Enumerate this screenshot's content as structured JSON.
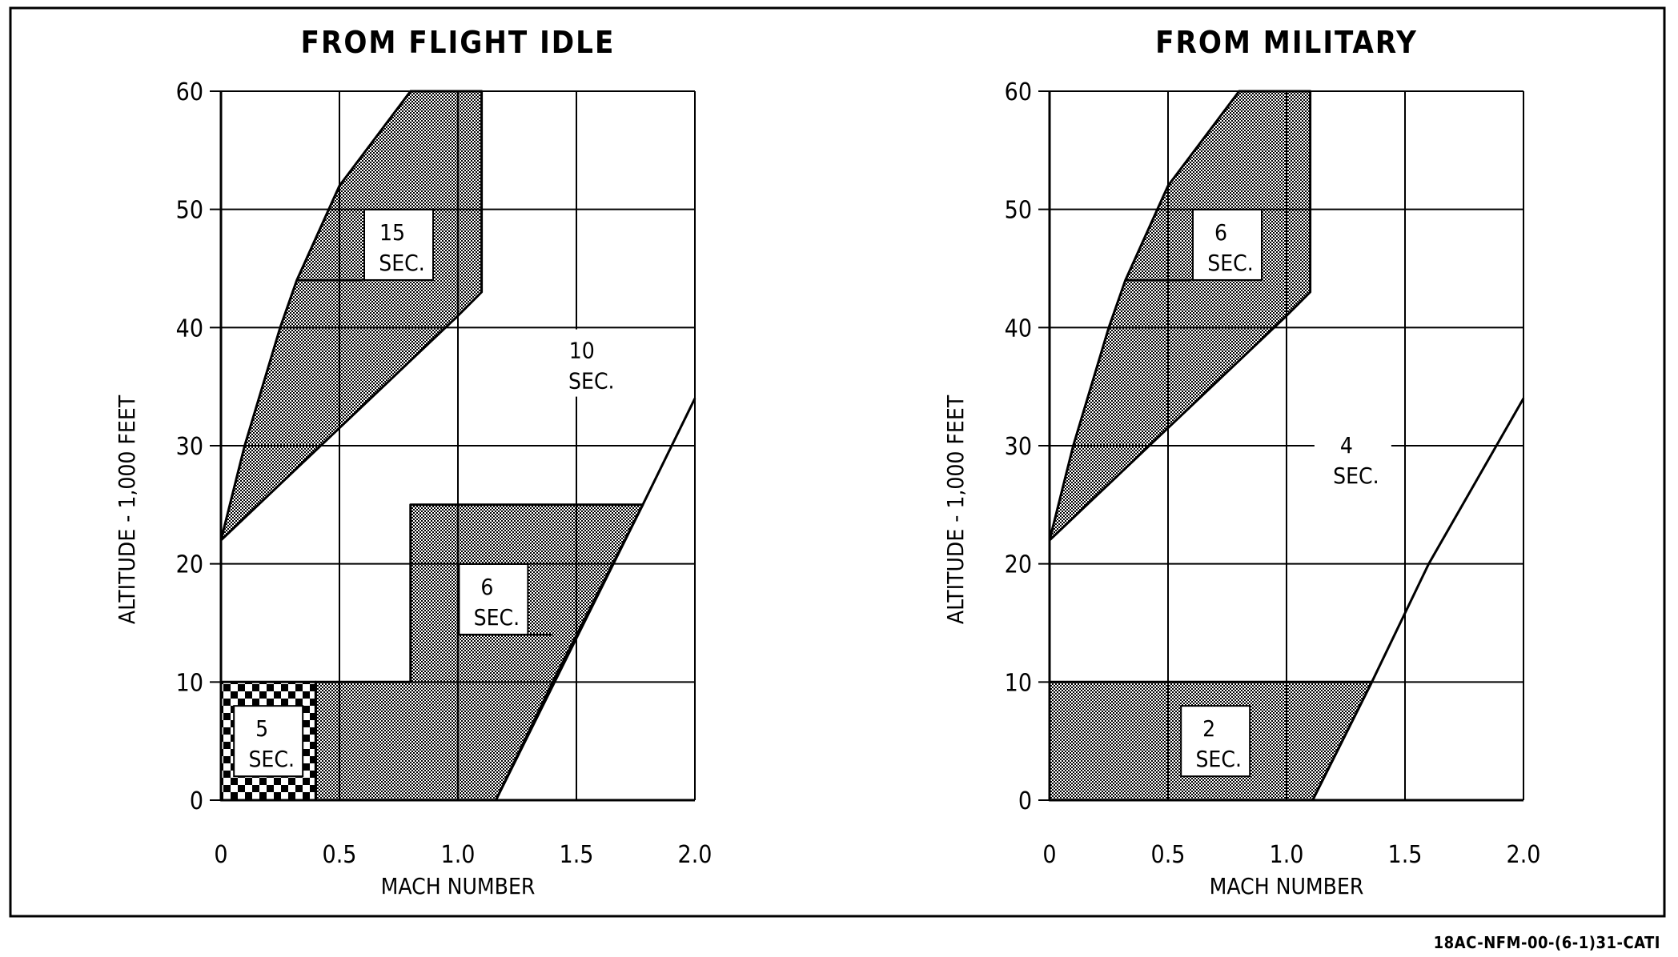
{
  "document_id": "18AC-NFM-00-(6-1)31-CATI",
  "colors": {
    "ink": "#000000",
    "background": "#ffffff",
    "dot_fill": "#9a9a9a"
  },
  "chart_data": [
    {
      "type": "area",
      "title": "FROM FLIGHT IDLE",
      "xlabel": "MACH NUMBER",
      "ylabel": "ALTITUDE - 1,000 FEET",
      "xlim": [
        0,
        2.0
      ],
      "ylim": [
        0,
        60
      ],
      "x_ticks": [
        "0",
        "0.5",
        "1.0",
        "1.5",
        "2.0"
      ],
      "y_ticks": [
        "0",
        "10",
        "20",
        "30",
        "40",
        "50",
        "60"
      ],
      "grid": true,
      "regions": [
        {
          "label_value": "15",
          "label_unit": "SEC.",
          "pattern": "dots",
          "polygon": [
            [
              0,
              22
            ],
            [
              0.1,
              30
            ],
            [
              0.25,
              40
            ],
            [
              0.32,
              44
            ],
            [
              0.5,
              52
            ],
            [
              0.8,
              60
            ],
            [
              1.1,
              60
            ],
            [
              1.1,
              43
            ],
            [
              1.0,
              41
            ],
            [
              0.5,
              31.5
            ],
            [
              0,
              22
            ]
          ],
          "label_at": [
            0.75,
            47
          ]
        },
        {
          "label_value": "6",
          "label_unit": "SEC.",
          "pattern": "dots",
          "polygon": [
            [
              0.4,
              0
            ],
            [
              0.4,
              10
            ],
            [
              0.8,
              10
            ],
            [
              0.8,
              25
            ],
            [
              1.78,
              25
            ],
            [
              1.16,
              0
            ]
          ],
          "label_at": [
            1.15,
            17
          ]
        },
        {
          "label_value": "5",
          "label_unit": "SEC.",
          "pattern": "checker",
          "polygon": [
            [
              0,
              0
            ],
            [
              0,
              10
            ],
            [
              0.4,
              10
            ],
            [
              0.4,
              0
            ]
          ],
          "label_at": [
            0.2,
            5
          ]
        },
        {
          "label_value": "10",
          "label_unit": "SEC.",
          "pattern": "none",
          "label_at": [
            1.55,
            37
          ]
        }
      ],
      "boundary_line": [
        [
          1.16,
          0
        ],
        [
          1.4,
          10
        ],
        [
          1.78,
          25
        ],
        [
          2.0,
          34
        ]
      ],
      "notches": [
        {
          "x": [
            0.32,
            0.6
          ],
          "y": 44
        },
        {
          "x": [
            1.0,
            1.4
          ],
          "y": 14
        }
      ]
    },
    {
      "type": "area",
      "title": "FROM MILITARY",
      "xlabel": "MACH NUMBER",
      "ylabel": "ALTITUDE - 1,000 FEET",
      "xlim": [
        0,
        2.0
      ],
      "ylim": [
        0,
        60
      ],
      "x_ticks": [
        "0",
        "0.5",
        "1.0",
        "1.5",
        "2.0"
      ],
      "y_ticks": [
        "0",
        "10",
        "20",
        "30",
        "40",
        "50",
        "60"
      ],
      "grid": true,
      "regions": [
        {
          "label_value": "6",
          "label_unit": "SEC.",
          "pattern": "dots",
          "polygon": [
            [
              0,
              22
            ],
            [
              0.1,
              30
            ],
            [
              0.25,
              40
            ],
            [
              0.32,
              44
            ],
            [
              0.5,
              52
            ],
            [
              0.8,
              60
            ],
            [
              1.1,
              60
            ],
            [
              1.1,
              43
            ],
            [
              1.0,
              41
            ],
            [
              0.5,
              31.5
            ],
            [
              0,
              22
            ]
          ],
          "label_at": [
            0.75,
            47
          ]
        },
        {
          "label_value": "2",
          "label_unit": "SEC.",
          "pattern": "dots",
          "polygon": [
            [
              0,
              0
            ],
            [
              0,
              10
            ],
            [
              1.36,
              10
            ],
            [
              1.11,
              0
            ]
          ],
          "label_at": [
            0.7,
            5
          ]
        },
        {
          "label_value": "4",
          "label_unit": "SEC.",
          "pattern": "none",
          "label_at": [
            1.28,
            29
          ]
        }
      ],
      "boundary_line": [
        [
          1.11,
          0
        ],
        [
          1.36,
          10
        ],
        [
          1.6,
          20
        ],
        [
          2.0,
          34
        ]
      ],
      "notches": [
        {
          "x": [
            0.32,
            0.6
          ],
          "y": 44
        }
      ]
    }
  ]
}
